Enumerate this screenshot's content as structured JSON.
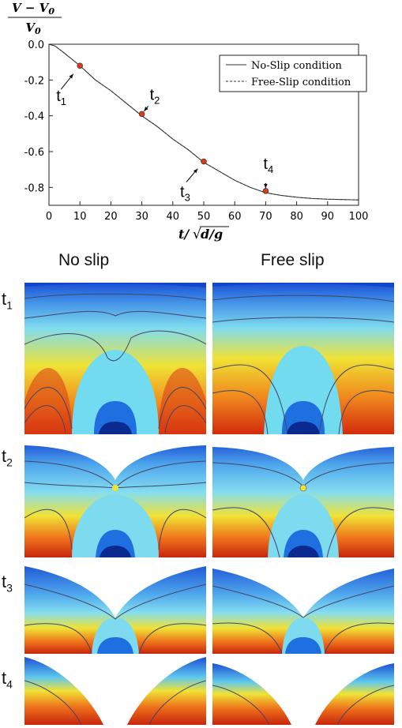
{
  "chart_data": {
    "type": "line",
    "title": "",
    "ylabel": "(V − V0) / V0",
    "xlabel": "t/√(d/g)",
    "xlim": [
      0,
      100
    ],
    "ylim": [
      -0.9,
      0.0
    ],
    "xticks": [
      "0",
      "10",
      "20",
      "30",
      "40",
      "50",
      "60",
      "70",
      "80",
      "90",
      "100"
    ],
    "yticks": [
      "0.0",
      "-0.2",
      "-0.4",
      "-0.6",
      "-0.8"
    ],
    "legend_position": "top-right",
    "series": [
      {
        "name": "No-Slip condition",
        "style": "solid",
        "x": [
          0,
          2,
          5,
          10,
          15,
          20,
          25,
          30,
          35,
          40,
          45,
          50,
          55,
          60,
          65,
          70,
          75,
          80,
          85,
          90,
          95,
          100
        ],
        "y": [
          0,
          -0.01,
          -0.05,
          -0.12,
          -0.2,
          -0.26,
          -0.33,
          -0.4,
          -0.46,
          -0.53,
          -0.59,
          -0.66,
          -0.71,
          -0.76,
          -0.8,
          -0.83,
          -0.845,
          -0.855,
          -0.862,
          -0.866,
          -0.868,
          -0.87
        ]
      },
      {
        "name": "Free-Slip condition",
        "style": "dashed",
        "x": [
          0,
          2,
          5,
          10,
          15,
          20,
          25,
          30,
          35,
          40,
          45,
          50,
          55,
          60,
          65,
          70,
          75,
          80,
          85,
          90,
          95,
          100
        ],
        "y": [
          0,
          -0.01,
          -0.05,
          -0.12,
          -0.2,
          -0.26,
          -0.33,
          -0.4,
          -0.46,
          -0.53,
          -0.59,
          -0.66,
          -0.71,
          -0.76,
          -0.8,
          -0.83,
          -0.845,
          -0.855,
          -0.862,
          -0.866,
          -0.868,
          -0.87
        ]
      }
    ],
    "markers": [
      {
        "label": "t",
        "sub": "1",
        "x": 10,
        "y": -0.12
      },
      {
        "label": "t",
        "sub": "2",
        "x": 30,
        "y": -0.39
      },
      {
        "label": "t",
        "sub": "3",
        "x": 50,
        "y": -0.655
      },
      {
        "label": "t",
        "sub": "4",
        "x": 70,
        "y": -0.82
      }
    ]
  },
  "columns": {
    "left": "No slip",
    "right": "Free slip"
  },
  "rows": [
    {
      "label": "t",
      "sub": "1"
    },
    {
      "label": "t",
      "sub": "2"
    },
    {
      "label": "t",
      "sub": "3"
    },
    {
      "label": "t",
      "sub": "4"
    }
  ],
  "colors": {
    "deep_blue": "#1a4fd6",
    "cyan": "#66dcf0",
    "yellow": "#f2e02a",
    "red": "#e03a12",
    "marker": "#e03a12"
  }
}
